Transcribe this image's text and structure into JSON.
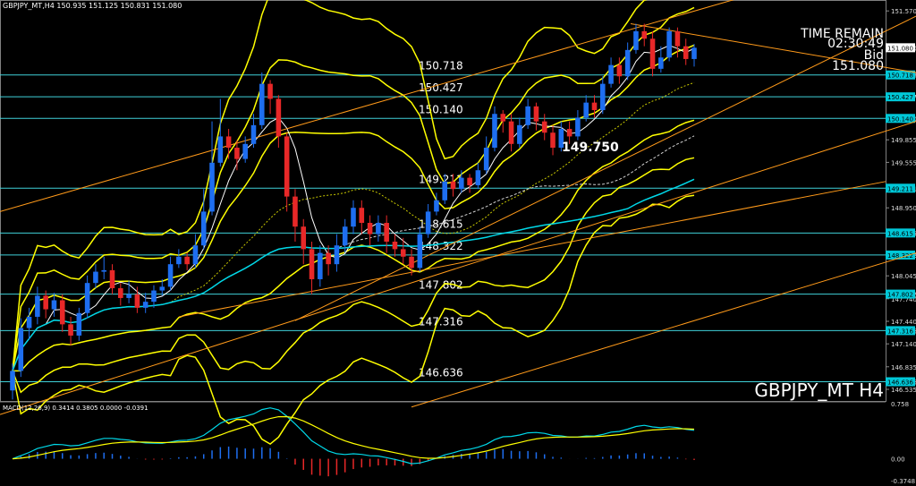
{
  "header": {
    "title": "GBPJPY_MT,H4",
    "ohlc": "150.935 151.125 150.831 151.080",
    "macd": "MACD(12,26,9) 0.3414 0.3805 0.0000 -0.0391"
  },
  "overlay": {
    "time_remain_label": "TIME REMAIN",
    "time_remain": "02:30:49",
    "bid_label": "Bid",
    "bid": "151.080",
    "symbol": "GBPJPY_MT H4"
  },
  "colors": {
    "bull": "#1e6ef0",
    "bear": "#e82828",
    "band": "#ffff00",
    "fast_ma": "#ffffff",
    "slow_ma": "#00d8e8",
    "trend": "#ff9a1a",
    "level": "#3fd0d8",
    "axis_label_bg": "#00c8d8"
  },
  "chart_data": {
    "type": "candlestick",
    "price_axis": {
      "ylim": [
        146.38,
        151.62
      ],
      "ticks": [
        "151.570",
        "151.080",
        "150.718",
        "150.427",
        "150.140",
        "149.855",
        "149.555",
        "149.211",
        "148.950",
        "148.615",
        "148.322",
        "148.045",
        "147.802",
        "147.740",
        "147.440",
        "147.316",
        "147.140",
        "146.835",
        "146.636",
        "146.535"
      ]
    },
    "levels": [
      {
        "value": 150.718,
        "label": "150.718"
      },
      {
        "value": 150.427,
        "label": "150.427"
      },
      {
        "value": 150.14,
        "label": "150.140"
      },
      {
        "value": 149.211,
        "label": "149.211"
      },
      {
        "value": 148.615,
        "label": "148.615"
      },
      {
        "value": 148.322,
        "label": "148.322"
      },
      {
        "value": 147.802,
        "label": "147.802"
      },
      {
        "value": 147.316,
        "label": "147.316"
      },
      {
        "value": 146.636,
        "label": "146.636"
      }
    ],
    "annotation": {
      "value": 149.75,
      "label": "149.750"
    },
    "current": {
      "value": 151.08,
      "label": "151.080"
    },
    "candles": [
      [
        146.52,
        146.78,
        146.4,
        146.88
      ],
      [
        146.78,
        147.35,
        146.7,
        147.48
      ],
      [
        147.35,
        147.5,
        147.2,
        147.62
      ],
      [
        147.5,
        147.78,
        147.4,
        147.9
      ],
      [
        147.78,
        147.6,
        147.48,
        147.85
      ],
      [
        147.6,
        147.72,
        147.5,
        147.82
      ],
      [
        147.72,
        147.4,
        147.3,
        147.8
      ],
      [
        147.4,
        147.25,
        147.12,
        147.5
      ],
      [
        147.25,
        147.55,
        147.18,
        147.62
      ],
      [
        147.55,
        147.95,
        147.48,
        148.05
      ],
      [
        147.95,
        148.1,
        147.88,
        148.2
      ],
      [
        148.1,
        148.12,
        148.0,
        148.3
      ],
      [
        148.12,
        147.88,
        147.8,
        148.2
      ],
      [
        147.88,
        147.75,
        147.65,
        147.95
      ],
      [
        147.75,
        147.8,
        147.68,
        147.98
      ],
      [
        147.8,
        147.62,
        147.55,
        147.9
      ],
      [
        147.62,
        147.7,
        147.55,
        147.82
      ],
      [
        147.7,
        147.85,
        147.62,
        147.92
      ],
      [
        147.85,
        147.9,
        147.78,
        148.0
      ],
      [
        147.9,
        148.2,
        147.85,
        148.3
      ],
      [
        148.2,
        148.3,
        148.15,
        148.4
      ],
      [
        148.3,
        148.2,
        148.12,
        148.35
      ],
      [
        148.2,
        148.45,
        148.15,
        148.6
      ],
      [
        148.45,
        148.9,
        148.4,
        149.2
      ],
      [
        148.9,
        149.55,
        148.85,
        150.1
      ],
      [
        149.55,
        149.9,
        149.5,
        150.4
      ],
      [
        149.9,
        149.75,
        149.6,
        150.0
      ],
      [
        149.75,
        149.6,
        149.45,
        149.85
      ],
      [
        149.6,
        149.8,
        149.55,
        149.9
      ],
      [
        149.8,
        150.05,
        149.75,
        150.2
      ],
      [
        150.05,
        150.6,
        150.0,
        150.75
      ],
      [
        150.6,
        150.4,
        150.2,
        150.65
      ],
      [
        150.4,
        149.9,
        149.75,
        150.45
      ],
      [
        149.9,
        149.1,
        148.9,
        149.95
      ],
      [
        149.1,
        148.7,
        148.5,
        149.2
      ],
      [
        148.7,
        148.4,
        148.2,
        148.8
      ],
      [
        148.4,
        148.0,
        147.8,
        148.5
      ],
      [
        148.0,
        148.35,
        147.9,
        148.45
      ],
      [
        148.35,
        148.2,
        148.05,
        148.45
      ],
      [
        148.2,
        148.45,
        148.1,
        148.6
      ],
      [
        148.45,
        148.7,
        148.35,
        148.8
      ],
      [
        148.7,
        148.95,
        148.6,
        149.05
      ],
      [
        148.95,
        148.75,
        148.6,
        149.05
      ],
      [
        148.75,
        148.6,
        148.45,
        148.85
      ],
      [
        148.6,
        148.75,
        148.5,
        148.85
      ],
      [
        148.75,
        148.5,
        148.35,
        148.85
      ],
      [
        148.5,
        148.4,
        148.3,
        148.6
      ],
      [
        148.4,
        148.3,
        148.2,
        148.55
      ],
      [
        148.3,
        148.15,
        148.05,
        148.4
      ],
      [
        148.15,
        148.6,
        148.1,
        148.7
      ],
      [
        148.6,
        148.9,
        148.55,
        149.0
      ],
      [
        148.9,
        149.05,
        148.85,
        149.15
      ],
      [
        149.05,
        149.3,
        149.0,
        149.4
      ],
      [
        149.3,
        149.2,
        149.1,
        149.4
      ],
      [
        149.2,
        149.35,
        149.15,
        149.45
      ],
      [
        149.35,
        149.25,
        149.15,
        149.4
      ],
      [
        149.25,
        149.45,
        149.2,
        149.55
      ],
      [
        149.45,
        149.75,
        149.4,
        149.9
      ],
      [
        149.75,
        150.2,
        149.7,
        150.3
      ],
      [
        150.2,
        150.1,
        149.95,
        150.25
      ],
      [
        150.1,
        149.8,
        149.7,
        150.2
      ],
      [
        149.8,
        150.05,
        149.75,
        150.15
      ],
      [
        150.05,
        150.3,
        150.0,
        150.4
      ],
      [
        150.3,
        150.1,
        149.98,
        150.35
      ],
      [
        150.1,
        149.95,
        149.85,
        150.2
      ],
      [
        149.95,
        149.75,
        149.65,
        150.05
      ],
      [
        149.75,
        150.0,
        149.7,
        150.1
      ],
      [
        150.0,
        149.9,
        149.8,
        150.1
      ],
      [
        149.9,
        150.15,
        149.85,
        150.25
      ],
      [
        150.15,
        150.35,
        150.1,
        150.45
      ],
      [
        150.35,
        150.25,
        150.15,
        150.45
      ],
      [
        150.25,
        150.6,
        150.2,
        150.7
      ],
      [
        150.6,
        150.85,
        150.55,
        150.95
      ],
      [
        150.85,
        150.7,
        150.6,
        150.95
      ],
      [
        150.7,
        151.05,
        150.65,
        151.15
      ],
      [
        151.05,
        151.3,
        151.0,
        151.4
      ],
      [
        151.3,
        151.2,
        151.1,
        151.4
      ],
      [
        151.2,
        150.8,
        150.7,
        151.3
      ],
      [
        150.8,
        150.95,
        150.75,
        151.1
      ],
      [
        150.95,
        151.3,
        150.9,
        151.35
      ],
      [
        151.3,
        151.1,
        150.95,
        151.35
      ],
      [
        151.1,
        150.93,
        150.85,
        151.2
      ],
      [
        150.93,
        151.08,
        150.83,
        151.13
      ]
    ],
    "macd": {
      "ylim": [
        -0.3748,
        0.758
      ],
      "ticks": [
        "0.758",
        "0.00",
        "-0.3748"
      ]
    }
  }
}
